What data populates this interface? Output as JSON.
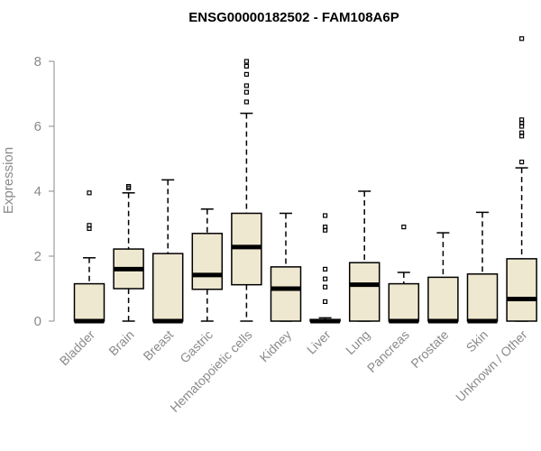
{
  "chart_data": {
    "type": "boxplot",
    "title": "ENSG00000182502 - FAM108A6P",
    "xlabel": "",
    "ylabel": "Expression",
    "ylim": [
      0,
      8.7
    ],
    "yticks": [
      0,
      2,
      4,
      6,
      8
    ],
    "grid": false,
    "box_color": "#efe8d0",
    "categories": [
      "Bladder",
      "Brain",
      "Breast",
      "Gastric",
      "Hematopoietic cells",
      "Kidney",
      "Liver",
      "Lung",
      "Pancreas",
      "Prostate",
      "Skin",
      "Unknown / Other"
    ],
    "boxes": [
      {
        "min": 0,
        "q1": 0,
        "median": 0,
        "q3": 1.15,
        "max": 1.95,
        "outliers": [
          2.85,
          2.95,
          3.95
        ]
      },
      {
        "min": 0,
        "q1": 1.0,
        "median": 1.6,
        "q3": 2.22,
        "max": 3.95,
        "outliers": [
          4.1,
          4.15
        ]
      },
      {
        "min": 0,
        "q1": 0,
        "median": 0,
        "q3": 2.08,
        "max": 4.35,
        "outliers": []
      },
      {
        "min": 0,
        "q1": 0.98,
        "median": 1.42,
        "q3": 2.7,
        "max": 3.45,
        "outliers": []
      },
      {
        "min": 0,
        "q1": 1.12,
        "median": 2.28,
        "q3": 3.32,
        "max": 6.4,
        "outliers": [
          6.75,
          7.05,
          7.25,
          7.6,
          7.85,
          8.0
        ]
      },
      {
        "min": 0,
        "q1": 0,
        "median": 1.0,
        "q3": 1.67,
        "max": 3.32,
        "outliers": []
      },
      {
        "min": 0,
        "q1": 0,
        "median": 0,
        "q3": 0.05,
        "max": 0.1,
        "outliers": [
          0.6,
          1.05,
          1.3,
          1.6,
          2.8,
          2.9,
          3.25
        ]
      },
      {
        "min": 0,
        "q1": 0,
        "median": 1.12,
        "q3": 1.8,
        "max": 4.0,
        "outliers": []
      },
      {
        "min": 0,
        "q1": 0,
        "median": 0,
        "q3": 1.15,
        "max": 1.5,
        "outliers": [
          2.9
        ]
      },
      {
        "min": 0,
        "q1": 0,
        "median": 0,
        "q3": 1.35,
        "max": 2.72,
        "outliers": []
      },
      {
        "min": 0,
        "q1": 0,
        "median": 0,
        "q3": 1.45,
        "max": 3.35,
        "outliers": []
      },
      {
        "min": 0,
        "q1": 0,
        "median": 0.68,
        "q3": 1.92,
        "max": 4.72,
        "outliers": [
          4.9,
          5.7,
          5.8,
          6.0,
          6.1,
          6.2,
          8.7
        ]
      }
    ]
  }
}
